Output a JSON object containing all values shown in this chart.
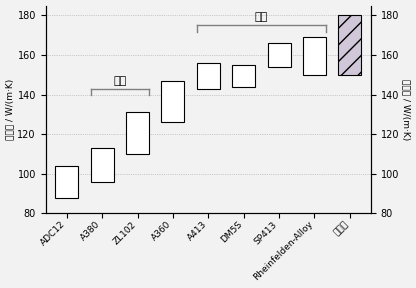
{
  "categories": [
    "ADC12",
    "A380",
    "ZL102",
    "A360",
    "A413",
    "DM5S",
    "SP413",
    "Rheinfelden-Alloy",
    "本发明"
  ],
  "bar_bottoms": [
    88,
    96,
    110,
    126,
    143,
    144,
    154,
    150,
    150
  ],
  "bar_tops": [
    104,
    113,
    131,
    147,
    156,
    155,
    166,
    169,
    180
  ],
  "bar_colors": [
    "white",
    "white",
    "white",
    "white",
    "white",
    "white",
    "white",
    "white",
    "#d0c8d8"
  ],
  "bar_hatch": [
    null,
    null,
    null,
    null,
    null,
    null,
    null,
    null,
    "//"
  ],
  "edge_colors": [
    "black",
    "black",
    "black",
    "black",
    "black",
    "black",
    "black",
    "black",
    "black"
  ],
  "ylim": [
    80,
    185
  ],
  "yticks": [
    80,
    100,
    120,
    140,
    160,
    180
  ],
  "ylabel_left": "热导率 / W/(m·K)",
  "ylabel_right": "热导率 / W/(m·K)",
  "domestic_label": "国内",
  "foreign_label": "国外",
  "figsize": [
    4.16,
    2.88
  ],
  "dpi": 100,
  "background_color": "#f2f2f2"
}
